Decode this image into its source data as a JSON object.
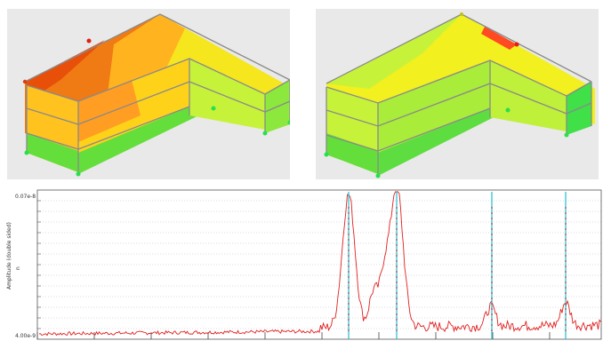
{
  "views": [
    {
      "name": "model-view-left",
      "contour_palette": [
        "#e8500a",
        "#ff8a1a",
        "#ffc21f",
        "#f5f01e",
        "#c7f23a",
        "#8ce83d",
        "#27e04a"
      ]
    },
    {
      "name": "model-view-right",
      "contour_palette": [
        "#ff3b1a",
        "#f5f01e",
        "#c7f23a",
        "#8ce83d",
        "#27e04a"
      ]
    }
  ],
  "spectrum": {
    "y_axis_label": "Amplitude (double sided)",
    "y_axis_symbol": "n",
    "y_max_label": "0.07e-8",
    "y_min_label": "4.00e-9",
    "line_color": "#e02020",
    "marker_color": "#1fbfd0",
    "marker_count": 4
  }
}
